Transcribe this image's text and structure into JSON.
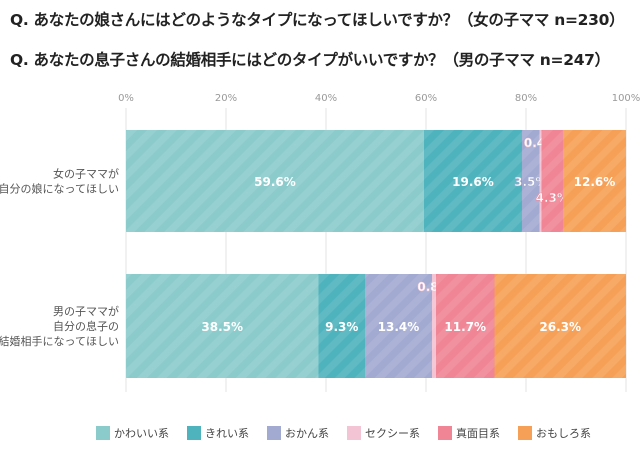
{
  "titles": [
    "Q. あなたの娘さんにはどのようなタイプになってほしいですか？（女の子ママ n=230）",
    "Q. あなたの息子さんの結婚相手にはどのタイプがいいですか？（男の子ママ n=247）"
  ],
  "chart_data": {
    "type": "bar",
    "orientation": "horizontal-stacked-100",
    "xlim": [
      0,
      100
    ],
    "xticks": [
      "0%",
      "20%",
      "40%",
      "60%",
      "80%",
      "100%"
    ],
    "grid": true,
    "legend_position": "bottom",
    "categories": [
      [
        "女の子ママが",
        "自分の娘になってほしい"
      ],
      [
        "男の子ママが",
        "自分の息子の",
        "結婚相手になってほしい"
      ]
    ],
    "series": [
      {
        "name": "かわいい系",
        "color": "#8ccbcc",
        "values": [
          59.6,
          38.5
        ]
      },
      {
        "name": "きれい系",
        "color": "#4fb3bd",
        "values": [
          19.6,
          9.3
        ]
      },
      {
        "name": "おかん系",
        "color": "#a3aad2",
        "values": [
          3.5,
          13.4
        ]
      },
      {
        "name": "セクシー系",
        "color": "#f2c4d4",
        "values": [
          0.4,
          0.8
        ]
      },
      {
        "name": "真面目系",
        "color": "#f08595",
        "values": [
          4.3,
          11.7
        ]
      },
      {
        "name": "おもしろ系",
        "color": "#f6a057",
        "values": [
          12.6,
          26.3
        ]
      }
    ]
  }
}
